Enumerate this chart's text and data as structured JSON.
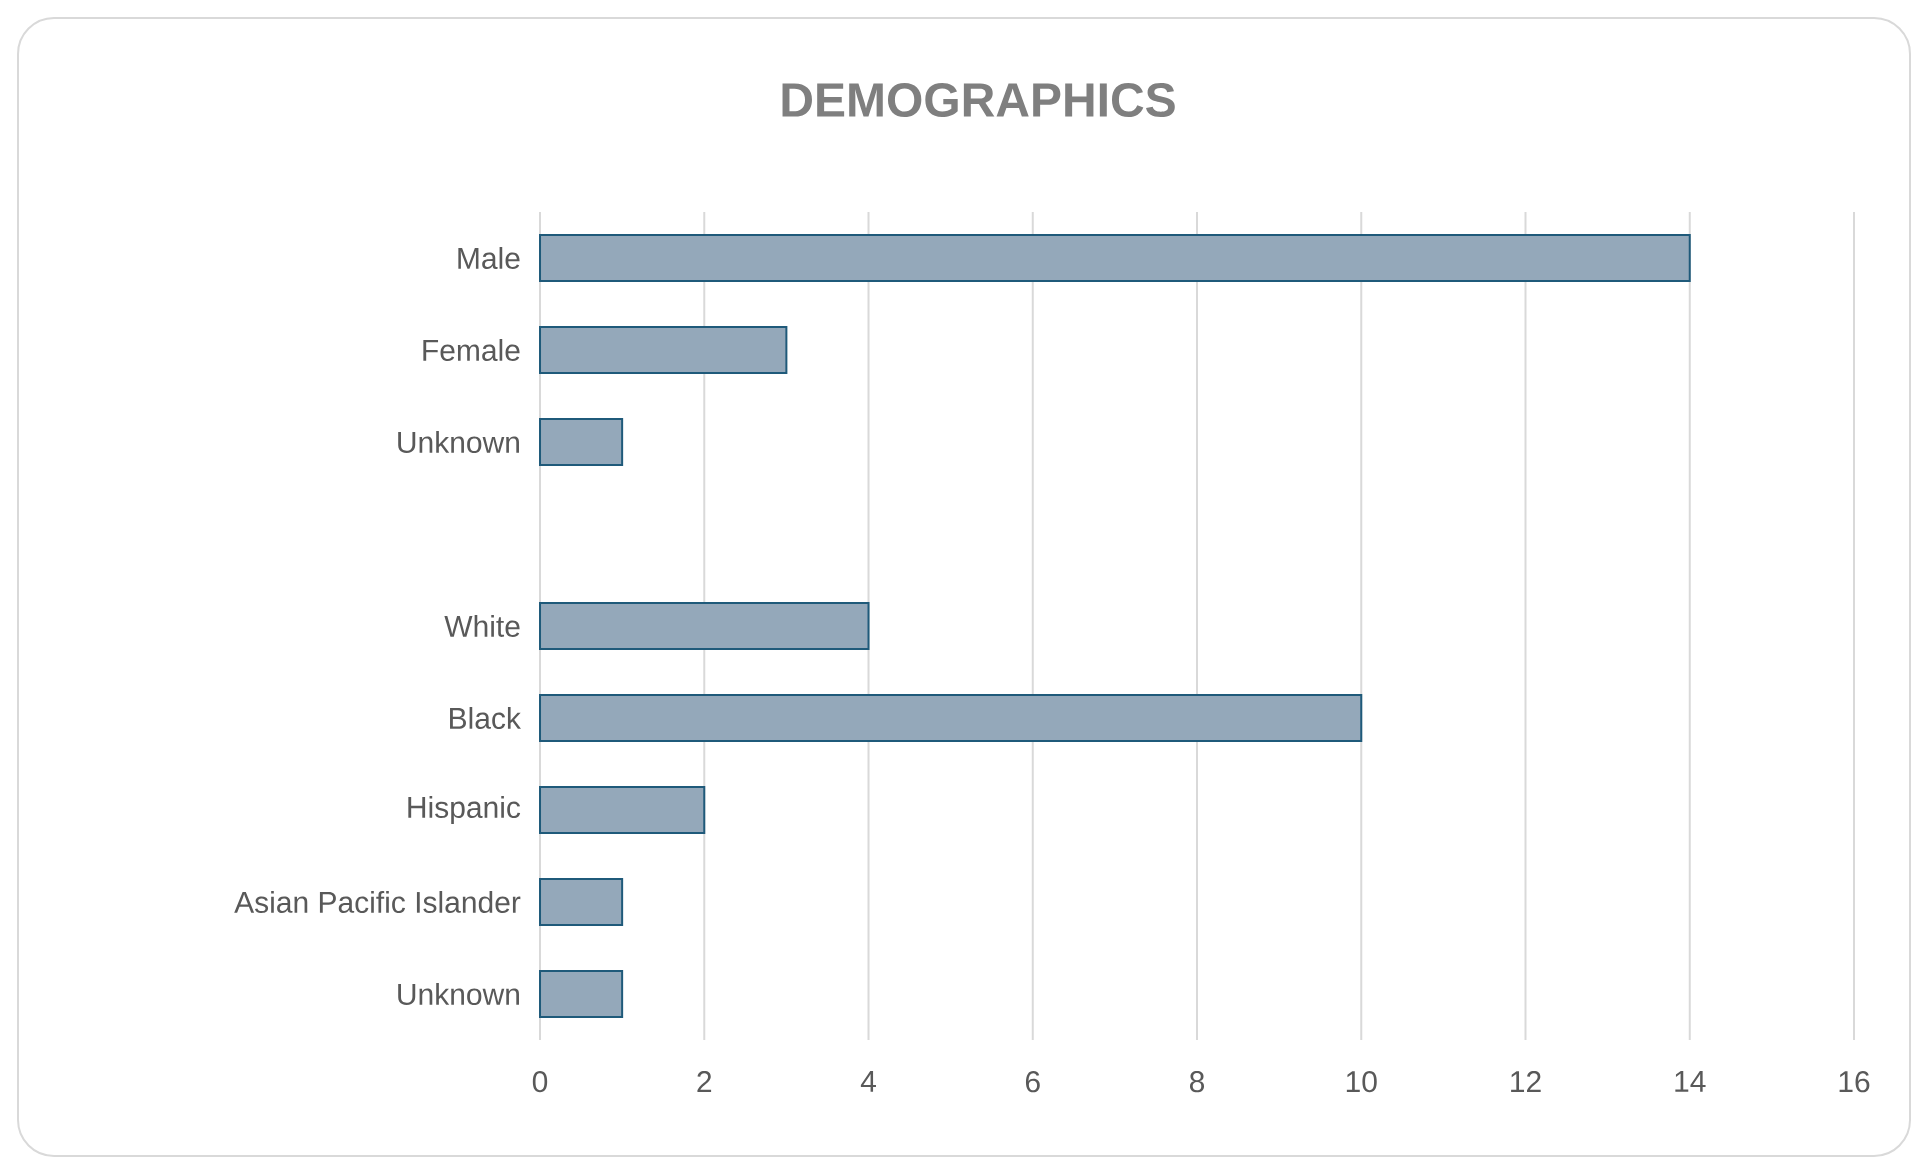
{
  "chart_data": {
    "type": "bar",
    "orientation": "horizontal",
    "title": "DEMOGRAPHICS",
    "categories": [
      "Male",
      "Female",
      "Unknown",
      null,
      "White",
      "Black",
      "Hispanic",
      "Asian Pacific Islander",
      "Unknown"
    ],
    "values": [
      14,
      3,
      1,
      null,
      4,
      10,
      2,
      1,
      1
    ],
    "color": "#94a8ba",
    "xlim": [
      0,
      16
    ],
    "xticks": [
      0,
      2,
      4,
      6,
      8,
      10,
      12,
      14,
      16
    ],
    "grid": "x"
  }
}
